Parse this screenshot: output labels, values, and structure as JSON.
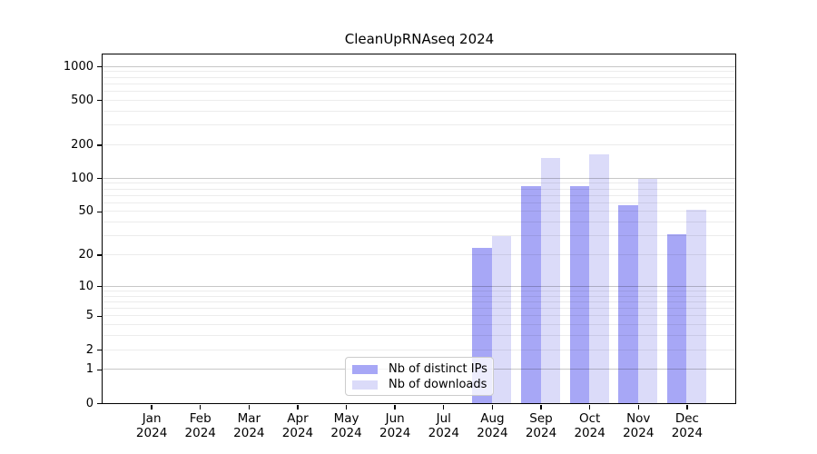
{
  "figure": {
    "background": "#ffffff",
    "title": "CleanUpRNAseq 2024"
  },
  "chart_data": {
    "type": "bar",
    "title": "CleanUpRNAseq 2024",
    "y_scale": "log1p",
    "ylim": [
      0,
      1290
    ],
    "grid": "on",
    "legend_position": "bottom-center-left",
    "x_tick_months": [
      "Jan",
      "Feb",
      "Mar",
      "Apr",
      "May",
      "Jun",
      "Jul",
      "Aug",
      "Sep",
      "Oct",
      "Nov",
      "Dec"
    ],
    "x_tick_year": "2024",
    "y_ticks": [
      0,
      1,
      2,
      5,
      10,
      20,
      50,
      100,
      200,
      500,
      1000
    ],
    "grid_major": [
      1,
      10,
      100,
      1000
    ],
    "grid_minor": [
      2,
      3,
      4,
      6,
      7,
      8,
      9,
      20,
      30,
      40,
      60,
      70,
      80,
      90,
      200,
      300,
      400,
      600,
      700,
      800,
      900,
      5,
      50,
      500
    ],
    "series": [
      {
        "name": "Nb of distinct IPs",
        "color": "#a7a7f6",
        "values": [
          0,
          0,
          0,
          0,
          0,
          0,
          0,
          23,
          85,
          85,
          57,
          31
        ]
      },
      {
        "name": "Nb of downloads",
        "color": "#dbdbf9",
        "values": [
          0,
          0,
          0,
          0,
          0,
          0,
          0,
          30,
          152,
          164,
          98,
          52
        ]
      }
    ]
  }
}
